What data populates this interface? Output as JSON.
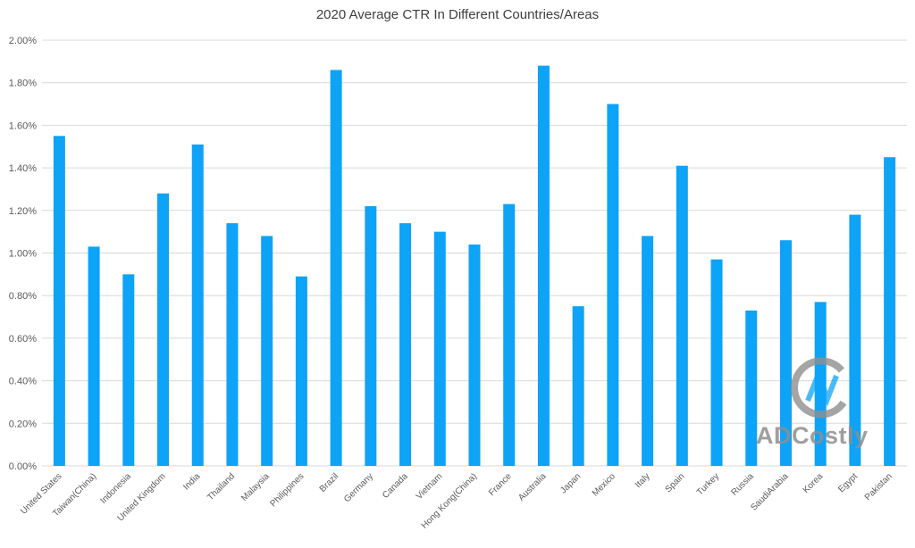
{
  "chart_data": {
    "type": "bar",
    "title": "2020 Average CTR In Different Countries/Areas",
    "categories": [
      "United States",
      "Taiwan(China)",
      "Indonesia",
      "United Kingdom",
      "India",
      "Thailand",
      "Malaysia",
      "Philippines",
      "Brazil",
      "Germany",
      "Canada",
      "Vietnam",
      "Hong Kong(China)",
      "France",
      "Australia",
      "Japan",
      "Mexico",
      "Italy",
      "Spain",
      "Turkey",
      "Russia",
      "SaudiArabia",
      "Korea",
      "Egypt",
      "Pakistan"
    ],
    "series": [
      {
        "values": [
          1.55,
          1.03,
          0.9,
          1.28,
          1.51,
          1.14,
          1.08,
          0.89,
          1.86,
          1.22,
          1.14,
          1.1,
          1.04,
          1.23,
          1.88,
          0.75,
          1.7,
          1.08,
          1.41,
          0.97,
          0.73,
          1.06,
          0.77,
          1.18,
          1.45
        ]
      }
    ],
    "y_ticks": [
      "0.00%",
      "0.20%",
      "0.40%",
      "0.60%",
      "0.80%",
      "1.00%",
      "1.20%",
      "1.40%",
      "1.60%",
      "1.80%",
      "2.00%"
    ],
    "ylim": [
      0,
      2.0
    ],
    "xlabel": "",
    "ylabel": "",
    "grid": true,
    "legend": "none",
    "bar_color": "#0da3f7",
    "gridline_color": "#d9d9d9",
    "tick_label_color": "#595959"
  },
  "watermark": {
    "text": "ADCostly"
  }
}
